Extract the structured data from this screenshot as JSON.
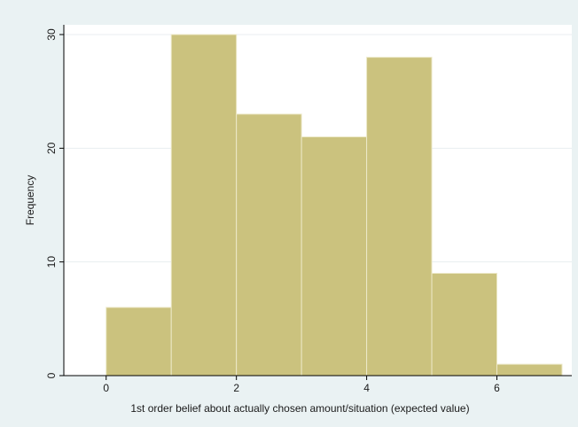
{
  "chart_data": {
    "type": "bar",
    "subtype": "histogram",
    "bins": [
      {
        "start": 0,
        "end": 1,
        "frequency": 6
      },
      {
        "start": 1,
        "end": 2,
        "frequency": 30
      },
      {
        "start": 2,
        "end": 3,
        "frequency": 23
      },
      {
        "start": 3,
        "end": 4,
        "frequency": 21
      },
      {
        "start": 4,
        "end": 5,
        "frequency": 28
      },
      {
        "start": 5,
        "end": 6,
        "frequency": 9
      },
      {
        "start": 6,
        "end": 7,
        "frequency": 1
      }
    ],
    "xlabel": "1st order belief about actually chosen amount/situation (expected value)",
    "ylabel": "Frequency",
    "xlim": [
      -0.65,
      7.15
    ],
    "ylim": [
      0,
      30
    ],
    "xticks": [
      0,
      2,
      4,
      6
    ],
    "yticks": [
      0,
      10,
      20,
      30
    ],
    "grid": "horizontal",
    "legend": "none",
    "colors": {
      "bar_fill": "#cbc27e",
      "bar_stroke": "#ece8c8",
      "outer_background": "#eaf2f3",
      "plot_background": "#ffffff",
      "gridline": "#e8eef0",
      "axis": "#000000"
    }
  }
}
